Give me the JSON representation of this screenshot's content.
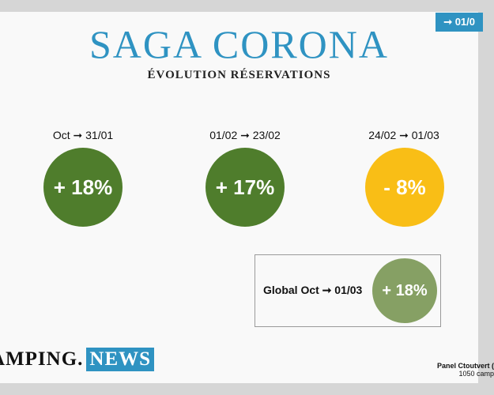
{
  "corner_badge": "➞ 01/0",
  "header": {
    "title": "SAGA CORONA",
    "subtitle": "ÉVOLUTION RÉSERVATIONS"
  },
  "periods": [
    {
      "label": "Oct ➞ 31/01",
      "value": "+ 18%",
      "color": "#4f7d2c"
    },
    {
      "label": "01/02 ➞ 23/02",
      "value": "+ 17%",
      "color": "#4f7d2c"
    },
    {
      "label": "24/02 ➞ 01/03",
      "value": "- 8%",
      "color": "#f9be16"
    }
  ],
  "global": {
    "label": "Global Oct ➞ 01/03",
    "value": "+ 18%",
    "color": "#86a064"
  },
  "logo": {
    "left": "AMPING.",
    "right": "NEWS",
    "accent": "#2f93c2"
  },
  "footer": {
    "panel_line1": "Panel Ctoutvert (",
    "panel_line2": "1050 camp"
  }
}
